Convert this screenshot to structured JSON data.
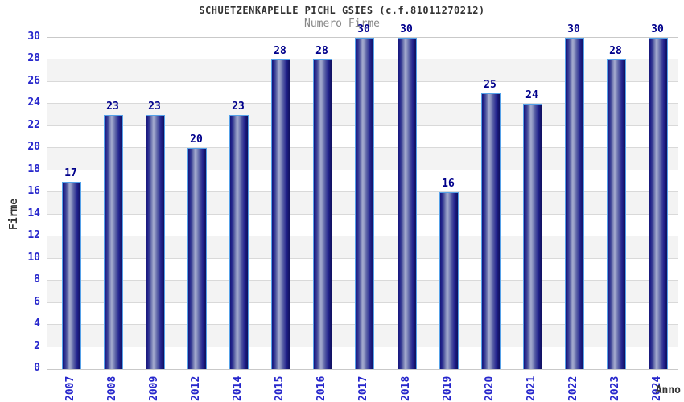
{
  "chart_data": {
    "type": "bar",
    "title": "SCHUETZENKAPELLE PICHL GSIES (c.f.81011270212)",
    "subtitle": "Numero Firme",
    "xlabel": "Anno",
    "ylabel": "Firme",
    "categories": [
      "2007",
      "2008",
      "2009",
      "2012",
      "2014",
      "2015",
      "2016",
      "2017",
      "2018",
      "2019",
      "2020",
      "2021",
      "2022",
      "2023",
      "2024"
    ],
    "values": [
      17,
      23,
      23,
      20,
      23,
      28,
      28,
      30,
      30,
      16,
      25,
      24,
      30,
      28,
      30
    ],
    "ylim": [
      0,
      30
    ],
    "ytick_step": 2,
    "grid": true,
    "legend": "none",
    "band_colors": [
      "#ffffff",
      "#f3f3f3"
    ]
  },
  "colors": {
    "title": "#333333",
    "subtitle": "#878787",
    "tick_label": "#2626cc",
    "value_label": "#00008b",
    "bar_border": "#55a1e8",
    "bar_dark": "#181878",
    "bar_highlight": "#a6accf",
    "grid_line": "#d9d9d9",
    "plot_border": "#c9c9c9"
  }
}
